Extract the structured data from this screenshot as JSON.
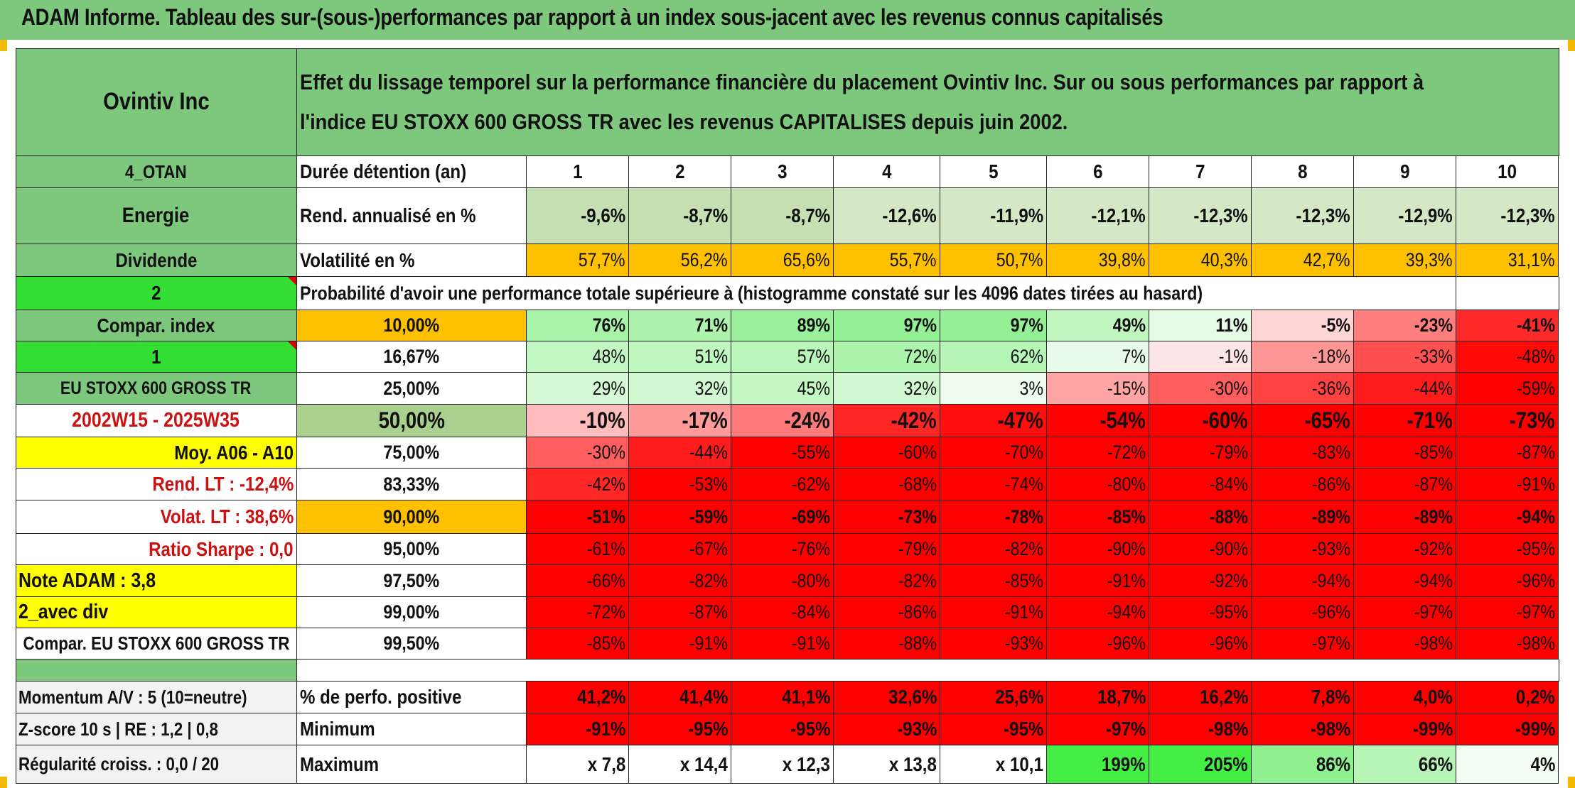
{
  "title": "ADAM Informe. Tableau des sur-(sous-)performances par rapport à un index sous-jacent avec les revenus connus capitalisés",
  "colors": {
    "header_green": "#7ec87e",
    "bright_green": "#33dd33",
    "orange": "#ffc000",
    "yellow": "#ffff00",
    "red": "#ff0000",
    "label_red": "#cc1111"
  },
  "left": {
    "company": "Ovintiv Inc",
    "code": "4_OTAN",
    "sector": "Energie",
    "type": "Dividende",
    "val2": "2",
    "compar_index_label": "Compar. index",
    "val1": "1",
    "index_name": "EU STOXX 600 GROSS TR",
    "period": "2002W15 - 2025W35",
    "moy": "Moy. A06 - A10",
    "rend_lt": "Rend. LT :   -12,4%",
    "volat_lt": "Volat. LT :   38,6%",
    "sharpe": "Ratio Sharpe :    0,0",
    "note": "Note ADAM : 3,8",
    "avec_div": "2_avec div",
    "compar_full": "Compar. EU STOXX 600 GROSS TR",
    "momentum": "Momentum A/V : 5 (10=neutre)",
    "zscore": "Z-score 10 s | RE : 1,2 | 0,8",
    "regularite": "Régularité croiss. : 0,0 / 20"
  },
  "header_text_line1": "Effet du lissage temporel sur la performance financière du placement Ovintiv Inc. Sur ou sous performances par rapport à",
  "header_text_line2": "l'indice EU STOXX 600 GROSS TR avec les revenus CAPITALISES depuis juin 2002.",
  "row_labels": {
    "duree": "Durée détention (an)",
    "rend": "Rend. annualisé en %",
    "volat": "Volatilité en %",
    "prob": "Probabilité d'avoir une performance totale supérieure à (histogramme constaté sur les 4096 dates tirées au hasard)",
    "perfo_pos": "% de perfo. positive",
    "minimum": "Minimum",
    "maximum": "Maximum"
  },
  "years": [
    "1",
    "2",
    "3",
    "4",
    "5",
    "6",
    "7",
    "8",
    "9",
    "10"
  ],
  "rend": [
    "-9,6%",
    "-8,7%",
    "-8,7%",
    "-12,6%",
    "-11,9%",
    "-12,1%",
    "-12,3%",
    "-12,3%",
    "-12,9%",
    "-12,3%"
  ],
  "volat": [
    "57,7%",
    "56,2%",
    "65,6%",
    "55,7%",
    "50,7%",
    "39,8%",
    "40,3%",
    "42,7%",
    "39,3%",
    "31,1%"
  ],
  "quantile_rows": [
    {
      "pct": "10,00%",
      "values": [
        "76%",
        "71%",
        "89%",
        "97%",
        "97%",
        "49%",
        "11%",
        "-5%",
        "-23%",
        "-41%"
      ]
    },
    {
      "pct": "16,67%",
      "values": [
        "48%",
        "51%",
        "57%",
        "72%",
        "62%",
        "7%",
        "-1%",
        "-18%",
        "-33%",
        "-48%"
      ]
    },
    {
      "pct": "25,00%",
      "values": [
        "29%",
        "32%",
        "45%",
        "32%",
        "3%",
        "-15%",
        "-30%",
        "-36%",
        "-44%",
        "-59%"
      ]
    },
    {
      "pct": "50,00%",
      "values": [
        "-10%",
        "-17%",
        "-24%",
        "-42%",
        "-47%",
        "-54%",
        "-60%",
        "-65%",
        "-71%",
        "-73%"
      ]
    },
    {
      "pct": "75,00%",
      "values": [
        "-30%",
        "-44%",
        "-55%",
        "-60%",
        "-70%",
        "-72%",
        "-79%",
        "-83%",
        "-85%",
        "-87%"
      ]
    },
    {
      "pct": "83,33%",
      "values": [
        "-42%",
        "-53%",
        "-62%",
        "-68%",
        "-74%",
        "-80%",
        "-84%",
        "-86%",
        "-87%",
        "-91%"
      ]
    },
    {
      "pct": "90,00%",
      "values": [
        "-51%",
        "-59%",
        "-69%",
        "-73%",
        "-78%",
        "-85%",
        "-88%",
        "-89%",
        "-89%",
        "-94%"
      ]
    },
    {
      "pct": "95,00%",
      "values": [
        "-61%",
        "-67%",
        "-76%",
        "-79%",
        "-82%",
        "-90%",
        "-90%",
        "-93%",
        "-92%",
        "-95%"
      ]
    },
    {
      "pct": "97,50%",
      "values": [
        "-66%",
        "-82%",
        "-80%",
        "-82%",
        "-85%",
        "-91%",
        "-92%",
        "-94%",
        "-94%",
        "-96%"
      ]
    },
    {
      "pct": "99,00%",
      "values": [
        "-72%",
        "-87%",
        "-84%",
        "-86%",
        "-91%",
        "-94%",
        "-95%",
        "-96%",
        "-97%",
        "-97%"
      ]
    },
    {
      "pct": "99,50%",
      "values": [
        "-85%",
        "-91%",
        "-91%",
        "-88%",
        "-93%",
        "-96%",
        "-96%",
        "-97%",
        "-98%",
        "-98%"
      ]
    }
  ],
  "perfo_pos": [
    "41,2%",
    "41,4%",
    "41,1%",
    "32,6%",
    "25,6%",
    "18,7%",
    "16,2%",
    "7,8%",
    "4,0%",
    "0,2%"
  ],
  "minimum": [
    "-91%",
    "-95%",
    "-95%",
    "-93%",
    "-95%",
    "-97%",
    "-98%",
    "-98%",
    "-99%",
    "-99%"
  ],
  "maximum": [
    "x 7,8",
    "x 14,4",
    "x 12,3",
    "x 13,8",
    "x 10,1",
    "199%",
    "205%",
    "86%",
    "66%",
    "4%"
  ]
}
